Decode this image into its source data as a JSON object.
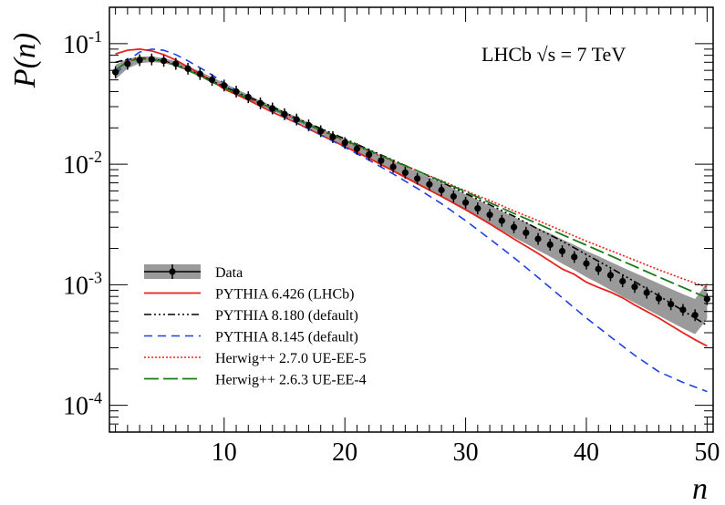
{
  "chart_data": {
    "type": "line",
    "title": "",
    "annotation": {
      "prefix": "LHCb ",
      "sqrt": "√s",
      "suffix": " = 7 TeV"
    },
    "xlabel": "n",
    "ylabel": "P(n)",
    "xlim": [
      0.5,
      50.5
    ],
    "ylim": [
      6e-05,
      0.2
    ],
    "yscale": "log",
    "x_ticks": [
      10,
      20,
      30,
      40,
      50
    ],
    "y_ticks": [
      {
        "value": 0.0001,
        "base": "10",
        "exp": "-4"
      },
      {
        "value": 0.001,
        "base": "10",
        "exp": "-3"
      },
      {
        "value": 0.01,
        "base": "10",
        "exp": "-2"
      },
      {
        "value": 0.1,
        "base": "10",
        "exp": "-1"
      }
    ],
    "legend_position": "bottom-left",
    "data": {
      "name": "Data",
      "x": [
        1,
        2,
        3,
        4,
        5,
        6,
        7,
        8,
        9,
        10,
        11,
        12,
        13,
        14,
        15,
        16,
        17,
        18,
        19,
        20,
        21,
        22,
        23,
        24,
        25,
        26,
        27,
        28,
        29,
        30,
        31,
        32,
        33,
        34,
        35,
        36,
        37,
        38,
        39,
        40,
        41,
        42,
        43,
        44,
        45,
        46,
        47,
        48,
        49,
        50
      ],
      "y": [
        0.058,
        0.068,
        0.073,
        0.074,
        0.072,
        0.068,
        0.062,
        0.056,
        0.05,
        0.045,
        0.04,
        0.036,
        0.032,
        0.029,
        0.026,
        0.0235,
        0.021,
        0.0188,
        0.0168,
        0.015,
        0.0134,
        0.012,
        0.0107,
        0.0095,
        0.0085,
        0.0076,
        0.0068,
        0.0061,
        0.0054,
        0.0048,
        0.0043,
        0.0038,
        0.0034,
        0.003,
        0.0027,
        0.0024,
        0.00215,
        0.0019,
        0.0017,
        0.0015,
        0.00135,
        0.0012,
        0.00107,
        0.00096,
        0.00086,
        0.00077,
        0.00069,
        0.00062,
        0.00056,
        0.00076
      ],
      "band_rel": [
        0.15,
        0.1,
        0.07,
        0.06,
        0.05,
        0.05,
        0.05,
        0.05,
        0.05,
        0.05,
        0.05,
        0.05,
        0.05,
        0.05,
        0.05,
        0.05,
        0.05,
        0.06,
        0.06,
        0.07,
        0.08,
        0.09,
        0.1,
        0.11,
        0.12,
        0.13,
        0.14,
        0.15,
        0.16,
        0.17,
        0.18,
        0.19,
        0.2,
        0.21,
        0.22,
        0.23,
        0.24,
        0.25,
        0.26,
        0.27,
        0.28,
        0.29,
        0.3,
        0.31,
        0.32,
        0.33,
        0.34,
        0.35,
        0.36,
        0.37
      ],
      "color": "#000000",
      "band_color": "#9a9a9a"
    },
    "series": [
      {
        "name": "PYTHIA 6.426 (LHCb)",
        "color": "#e8211c",
        "dash": "",
        "width": 1.8,
        "x": [
          1,
          2,
          3,
          4,
          5,
          6,
          7,
          8,
          9,
          10,
          12,
          14,
          16,
          18,
          20,
          22,
          24,
          26,
          28,
          30,
          32,
          34,
          36,
          38,
          39,
          40,
          41,
          42,
          43,
          44,
          45,
          46,
          47,
          48,
          49,
          50
        ],
        "y": [
          0.082,
          0.088,
          0.09,
          0.087,
          0.081,
          0.073,
          0.064,
          0.056,
          0.049,
          0.042,
          0.034,
          0.027,
          0.022,
          0.0175,
          0.014,
          0.0112,
          0.0088,
          0.0069,
          0.0054,
          0.0042,
          0.0032,
          0.0024,
          0.00182,
          0.00135,
          0.00122,
          0.00105,
          0.00095,
          0.00087,
          0.00078,
          0.00068,
          0.0006,
          0.00053,
          0.00046,
          0.0004,
          0.00035,
          0.00031
        ]
      },
      {
        "name": "PYTHIA 8.180 (default)",
        "color": "#000000",
        "dash": "8,3,2,3,2,3,2,3",
        "width": 1.6,
        "x": [
          1,
          2,
          3,
          4,
          5,
          6,
          7,
          8,
          9,
          10,
          12,
          14,
          16,
          18,
          20,
          22,
          24,
          26,
          28,
          30,
          32,
          34,
          36,
          38,
          40,
          42,
          44,
          46,
          48,
          50
        ],
        "y": [
          0.07,
          0.074,
          0.076,
          0.075,
          0.072,
          0.067,
          0.061,
          0.055,
          0.049,
          0.044,
          0.036,
          0.03,
          0.024,
          0.0198,
          0.0162,
          0.0132,
          0.0108,
          0.0088,
          0.0071,
          0.0057,
          0.0046,
          0.0037,
          0.0029,
          0.0023,
          0.00178,
          0.00138,
          0.00106,
          0.00081,
          0.00061,
          0.00046
        ]
      },
      {
        "name": "PYTHIA 8.145 (default)",
        "color": "#1f3fe0",
        "dash": "9,6",
        "width": 1.6,
        "x": [
          1,
          2,
          3,
          4,
          5,
          6,
          7,
          8,
          9,
          10,
          12,
          14,
          16,
          18,
          20,
          22,
          24,
          26,
          28,
          30,
          32,
          34,
          36,
          38,
          40,
          42,
          44,
          46,
          48,
          50
        ],
        "y": [
          0.055,
          0.072,
          0.085,
          0.09,
          0.088,
          0.081,
          0.072,
          0.063,
          0.055,
          0.047,
          0.036,
          0.028,
          0.022,
          0.0175,
          0.0138,
          0.0108,
          0.0083,
          0.0063,
          0.0047,
          0.0034,
          0.0024,
          0.00168,
          0.00115,
          0.00078,
          0.00053,
          0.00037,
          0.00026,
          0.00019,
          0.000155,
          0.00013
        ]
      },
      {
        "name": "Herwig++ 2.7.0 UE-EE-5",
        "color": "#e8211c",
        "dash": "2,2",
        "width": 1.6,
        "x": [
          1,
          2,
          3,
          4,
          5,
          6,
          7,
          8,
          9,
          10,
          12,
          14,
          16,
          18,
          20,
          22,
          24,
          26,
          28,
          30,
          32,
          34,
          36,
          38,
          40,
          42,
          44,
          46,
          48,
          50
        ],
        "y": [
          0.06,
          0.072,
          0.076,
          0.075,
          0.071,
          0.066,
          0.06,
          0.054,
          0.048,
          0.043,
          0.035,
          0.029,
          0.0235,
          0.019,
          0.0155,
          0.0128,
          0.0106,
          0.0088,
          0.0073,
          0.006,
          0.005,
          0.0041,
          0.0034,
          0.0028,
          0.0023,
          0.00192,
          0.0016,
          0.00133,
          0.00112,
          0.00095
        ]
      },
      {
        "name": "Herwig++ 2.6.3 UE-EE-4",
        "color": "#1a7a1a",
        "dash": "16,5",
        "width": 1.8,
        "x": [
          1,
          2,
          3,
          4,
          5,
          6,
          7,
          8,
          9,
          10,
          12,
          14,
          16,
          18,
          20,
          22,
          24,
          26,
          28,
          30,
          32,
          34,
          36,
          38,
          40,
          42,
          44,
          46,
          48,
          50
        ],
        "y": [
          0.06,
          0.071,
          0.075,
          0.074,
          0.071,
          0.066,
          0.06,
          0.054,
          0.048,
          0.043,
          0.035,
          0.029,
          0.0235,
          0.0192,
          0.0158,
          0.013,
          0.0107,
          0.0088,
          0.0072,
          0.0059,
          0.0048,
          0.0039,
          0.0032,
          0.0026,
          0.00213,
          0.00174,
          0.00142,
          0.00116,
          0.00095,
          0.00078
        ]
      }
    ]
  }
}
